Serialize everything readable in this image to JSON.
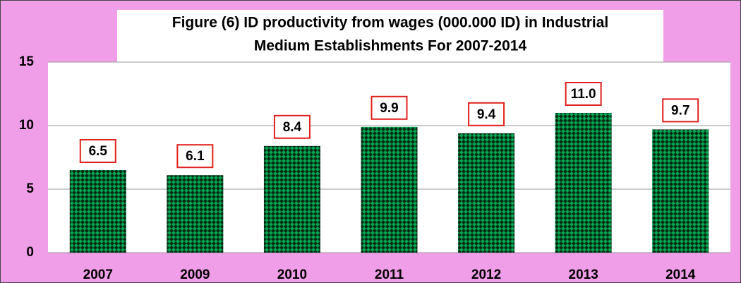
{
  "chart_data": {
    "type": "bar",
    "title": [
      "Figure (6) ID productivity from wages (000.000 ID) in Industrial",
      "Medium Establishments For 2007-2014"
    ],
    "categories": [
      "2007",
      "2009",
      "2010",
      "2011",
      "2012",
      "2013",
      "2014"
    ],
    "values": [
      6.5,
      6.1,
      8.4,
      9.9,
      9.4,
      11.0,
      9.7
    ],
    "value_labels": [
      "6.5",
      "6.1",
      "8.4",
      "9.9",
      "9.4",
      "11.0",
      "9.7"
    ],
    "color": "#00a651",
    "ylim": [
      0,
      15
    ],
    "yticks": [
      0,
      5,
      10,
      15
    ],
    "grid": true
  }
}
